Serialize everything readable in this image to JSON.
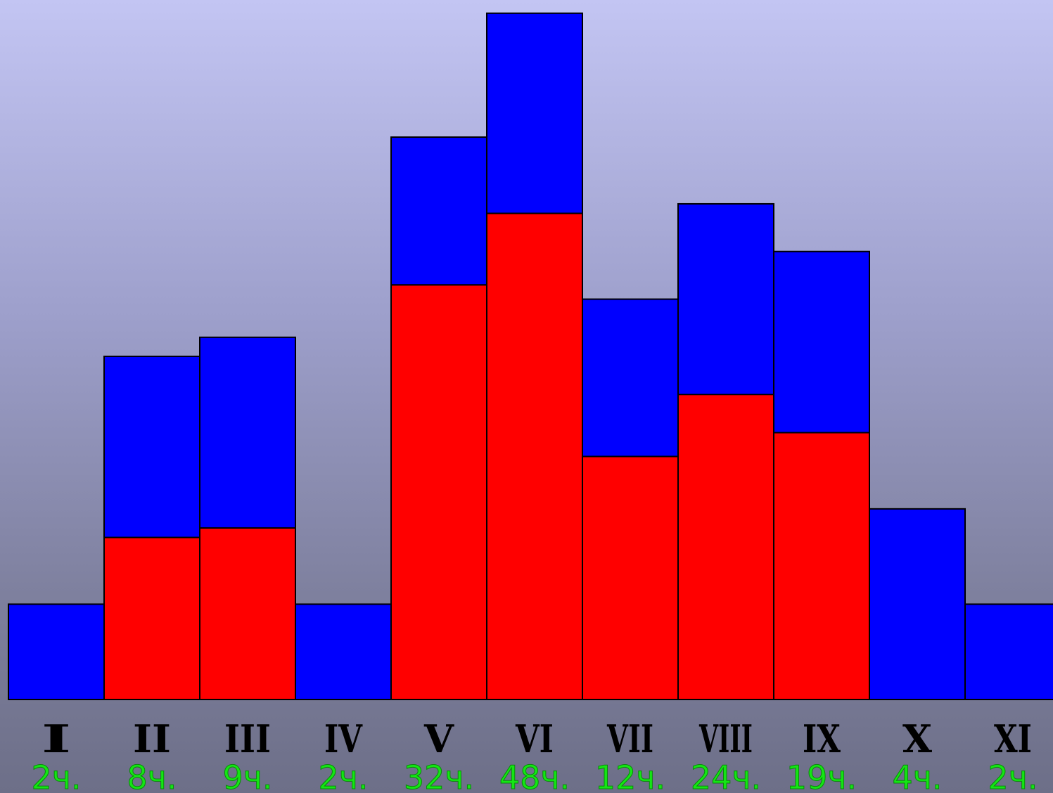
{
  "chart_data": {
    "type": "bar",
    "stacked": true,
    "categories": [
      "I",
      "II",
      "III",
      "IV",
      "V",
      "VI",
      "VII",
      "VIII",
      "IX",
      "X",
      "XI"
    ],
    "value_labels": [
      "2ч.",
      "8ч.",
      "9ч.",
      "2ч.",
      "32ч.",
      "48ч.",
      "12ч.",
      "24ч.",
      "19ч.",
      "4ч.",
      "2ч."
    ],
    "series": [
      {
        "color": "#ff0000",
        "values": [
          0,
          3.4,
          3.6,
          0,
          8.7,
          10.2,
          5.1,
          6.4,
          5.6,
          0,
          0
        ]
      },
      {
        "color": "#0000ff",
        "values": [
          2.0,
          3.8,
          4.0,
          2.0,
          3.1,
          4.2,
          3.3,
          4.0,
          3.8,
          4.0,
          2.0
        ]
      }
    ],
    "ylim": [
      0,
      14.5
    ],
    "grid": false,
    "legend": "none",
    "colors": {
      "bar_outline": "#000000",
      "value_label": "#14e614"
    }
  }
}
